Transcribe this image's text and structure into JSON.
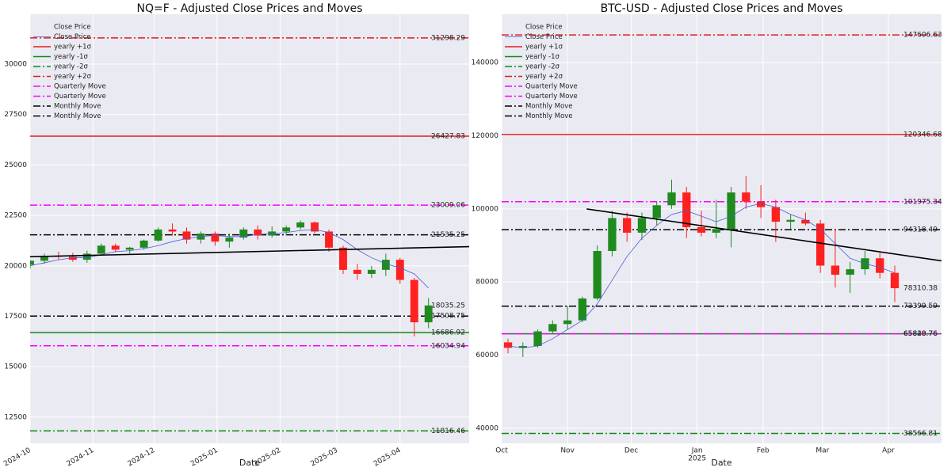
{
  "chart_data": [
    {
      "type": "candlestick",
      "title": "NQ=F - Adjusted Close Prices and Moves",
      "xlabel": "Date",
      "xlim": [
        0,
        216
      ],
      "ylim": [
        11200,
        32470
      ],
      "xtick_rotation": 30,
      "grid": true,
      "legend_loc": "upper left",
      "xticks": [
        {
          "value": 0,
          "label": "2024-10"
        },
        {
          "value": 31,
          "label": "2024-11"
        },
        {
          "value": 61,
          "label": "2024-12"
        },
        {
          "value": 92,
          "label": "2025-01"
        },
        {
          "value": 123,
          "label": "2025-02"
        },
        {
          "value": 151,
          "label": "2025-03"
        },
        {
          "value": 182,
          "label": "2025-04"
        }
      ],
      "yticks": [
        12500,
        15000,
        17500,
        20000,
        22500,
        25000,
        27500,
        30000
      ],
      "up_color": "#1f8b1f",
      "down_color": "#ff2020",
      "ma_color": "#4a5cdb",
      "x": [
        0,
        7,
        14,
        21,
        28,
        35,
        42,
        49,
        56,
        63,
        70,
        77,
        84,
        91,
        98,
        105,
        112,
        119,
        126,
        133,
        140,
        147,
        154,
        161,
        168,
        175,
        182,
        189,
        196
      ],
      "open": [
        20050,
        20250,
        20500,
        20450,
        20300,
        20600,
        21000,
        20800,
        20900,
        21250,
        21800,
        21700,
        21300,
        21600,
        21200,
        21400,
        21800,
        21500,
        21700,
        21900,
        22150,
        21700,
        20900,
        19800,
        19600,
        19800,
        20300,
        19300,
        17200
      ],
      "high": [
        20300,
        20600,
        20700,
        20650,
        20750,
        21100,
        21100,
        20950,
        21300,
        21900,
        22100,
        21900,
        21700,
        21700,
        21600,
        21900,
        22000,
        21950,
        22000,
        22250,
        22200,
        21800,
        21000,
        20100,
        20000,
        20600,
        20400,
        19400,
        18400
      ],
      "low": [
        19850,
        20100,
        20300,
        20200,
        20150,
        20500,
        20700,
        20600,
        20800,
        21200,
        21500,
        21100,
        21100,
        21000,
        20900,
        21300,
        21300,
        21400,
        21500,
        21800,
        21600,
        20700,
        19600,
        19300,
        19400,
        19500,
        19100,
        16500,
        16900
      ],
      "close": [
        20250,
        20500,
        20450,
        20300,
        20600,
        21000,
        20800,
        20900,
        21250,
        21800,
        21700,
        21300,
        21600,
        21200,
        21400,
        21800,
        21500,
        21700,
        21900,
        22150,
        21700,
        20900,
        19800,
        19600,
        19800,
        20300,
        19300,
        17200,
        18035.25
      ],
      "ma": [
        20000,
        20150,
        20300,
        20400,
        20400,
        20550,
        20700,
        20750,
        20850,
        21000,
        21200,
        21350,
        21450,
        21500,
        21450,
        21450,
        21550,
        21600,
        21650,
        21750,
        21800,
        21650,
        21300,
        20800,
        20400,
        20100,
        19900,
        19600,
        18900
      ],
      "trendline": {
        "x": [
          0,
          216
        ],
        "y": [
          20450,
          20950
        ]
      },
      "levels": [
        {
          "value": 31298.29,
          "color": "#e41a1c",
          "style": "dashdot"
        },
        {
          "value": 26427.83,
          "color": "#e41a1c",
          "style": "solid"
        },
        {
          "value": 23009.06,
          "color": "#ff00ff",
          "style": "dashdot"
        },
        {
          "value": 21535.25,
          "color": "#000000",
          "style": "dashdot"
        },
        {
          "value": 18035.25,
          "color": "#0000ff",
          "style": "none"
        },
        {
          "value": 17508.75,
          "color": "#000000",
          "style": "dashdot"
        },
        {
          "value": 16686.92,
          "color": "#138a13",
          "style": "solid"
        },
        {
          "value": 16034.94,
          "color": "#ff00ff",
          "style": "dashdot"
        },
        {
          "value": 11816.46,
          "color": "#138a13",
          "style": "dashdot"
        }
      ],
      "legend": [
        {
          "name": "Close Price",
          "style": "none"
        },
        {
          "name": "Close Price",
          "color": "#4a5cdb",
          "style": "thin"
        },
        {
          "name": "yearly +1σ",
          "color": "#e41a1c",
          "style": "solid"
        },
        {
          "name": "yearly -1σ",
          "color": "#138a13",
          "style": "solid"
        },
        {
          "name": "yearly -2σ",
          "color": "#138a13",
          "style": "dashdot"
        },
        {
          "name": "yearly +2σ",
          "color": "#e41a1c",
          "style": "dashdot"
        },
        {
          "name": "Quarterly Move",
          "color": "#ff00ff",
          "style": "dashdot"
        },
        {
          "name": "Quarterly Move",
          "color": "#ff00ff",
          "style": "dashdot"
        },
        {
          "name": "Monthly Move",
          "color": "#000000",
          "style": "dashdot"
        },
        {
          "name": "Monthly Move",
          "color": "#000000",
          "style": "dashdot"
        }
      ]
    },
    {
      "type": "candlestick",
      "title": "BTC-USD - Adjusted Close Prices and Moves",
      "xlabel": "Date",
      "xlim": [
        0,
        207
      ],
      "ylim": [
        35870,
        153260
      ],
      "xtick_rotation": 0,
      "grid": true,
      "legend_loc": "upper left",
      "xticks": [
        {
          "value": 0,
          "label": "Oct"
        },
        {
          "value": 31,
          "label": "Nov"
        },
        {
          "value": 61,
          "label": "Dec"
        },
        {
          "value": 92,
          "label": "Jan",
          "sublabel": "2025"
        },
        {
          "value": 123,
          "label": "Feb"
        },
        {
          "value": 151,
          "label": "Mar"
        },
        {
          "value": 182,
          "label": "Apr"
        }
      ],
      "yticks": [
        40000,
        60000,
        80000,
        100000,
        120000,
        140000
      ],
      "up_color": "#1f8b1f",
      "down_color": "#ff2020",
      "ma_color": "#4a5cdb",
      "x": [
        3,
        10,
        17,
        24,
        31,
        38,
        45,
        52,
        59,
        66,
        73,
        80,
        87,
        94,
        101,
        108,
        115,
        122,
        129,
        136,
        143,
        150,
        157,
        164,
        171,
        178,
        185
      ],
      "open": [
        63500,
        62000,
        62500,
        66500,
        68500,
        69500,
        75500,
        88500,
        97500,
        93500,
        97500,
        101000,
        104500,
        95000,
        93500,
        94500,
        104500,
        102000,
        100500,
        96500,
        97000,
        96000,
        84500,
        82000,
        83500,
        86500,
        82500
      ],
      "high": [
        64500,
        63500,
        67000,
        69500,
        73500,
        76000,
        90000,
        99500,
        99000,
        99000,
        102000,
        108000,
        106000,
        99500,
        102500,
        106000,
        109000,
        106500,
        102500,
        98500,
        99000,
        97000,
        94500,
        85500,
        88500,
        88000,
        84500
      ],
      "low": [
        60500,
        59500,
        62000,
        66000,
        67000,
        69000,
        75000,
        87000,
        91000,
        91500,
        95500,
        100000,
        92000,
        92500,
        92000,
        89500,
        100000,
        97500,
        91000,
        94500,
        95500,
        82500,
        78500,
        77000,
        82000,
        81000,
        74500
      ],
      "close": [
        62000,
        62500,
        66500,
        68500,
        69500,
        75500,
        88500,
        97500,
        93500,
        97500,
        101000,
        104500,
        95000,
        93500,
        94500,
        104500,
        102000,
        100500,
        96500,
        97000,
        96000,
        84500,
        82000,
        83500,
        86500,
        82500,
        78310.38
      ],
      "ma": [
        62500,
        62000,
        62500,
        64500,
        67000,
        69500,
        74000,
        80500,
        87000,
        92000,
        95500,
        98500,
        99500,
        98000,
        96500,
        98000,
        100500,
        101500,
        100500,
        98500,
        97000,
        94500,
        90500,
        86500,
        85000,
        84000,
        82500
      ],
      "trendline": {
        "x": [
          40,
          207
        ],
        "y": [
          100000,
          85800
        ]
      },
      "levels": [
        {
          "value": 147606.63,
          "color": "#e41a1c",
          "style": "dashdot"
        },
        {
          "value": 120346.68,
          "color": "#e41a1c",
          "style": "solid"
        },
        {
          "value": 101975.34,
          "color": "#ff00ff",
          "style": "dashdot"
        },
        {
          "value": 94318.49,
          "color": "#000000",
          "style": "dashdot"
        },
        {
          "value": 78310.38,
          "color": "#0000ff",
          "style": "none"
        },
        {
          "value": 73399.59,
          "color": "#000000",
          "style": "dashdot"
        },
        {
          "value": 65840.76,
          "color": "#138a13",
          "style": "solid"
        },
        {
          "value": 65828.76,
          "color": "#ff00ff",
          "style": "dashdot"
        },
        {
          "value": 38566.81,
          "color": "#138a13",
          "style": "dashdot"
        }
      ],
      "legend": [
        {
          "name": "Close Price",
          "style": "none"
        },
        {
          "name": "Close Price",
          "color": "#4a5cdb",
          "style": "thin"
        },
        {
          "name": "yearly +1σ",
          "color": "#e41a1c",
          "style": "solid"
        },
        {
          "name": "yearly -1σ",
          "color": "#138a13",
          "style": "solid"
        },
        {
          "name": "yearly -2σ",
          "color": "#138a13",
          "style": "dashdot"
        },
        {
          "name": "yearly +2σ",
          "color": "#e41a1c",
          "style": "dashdot"
        },
        {
          "name": "Quarterly Move",
          "color": "#ff00ff",
          "style": "dashdot"
        },
        {
          "name": "Quarterly Move",
          "color": "#ff00ff",
          "style": "dashdot"
        },
        {
          "name": "Monthly Move",
          "color": "#000000",
          "style": "dashdot"
        },
        {
          "name": "Monthly Move",
          "color": "#000000",
          "style": "dashdot"
        }
      ]
    }
  ]
}
